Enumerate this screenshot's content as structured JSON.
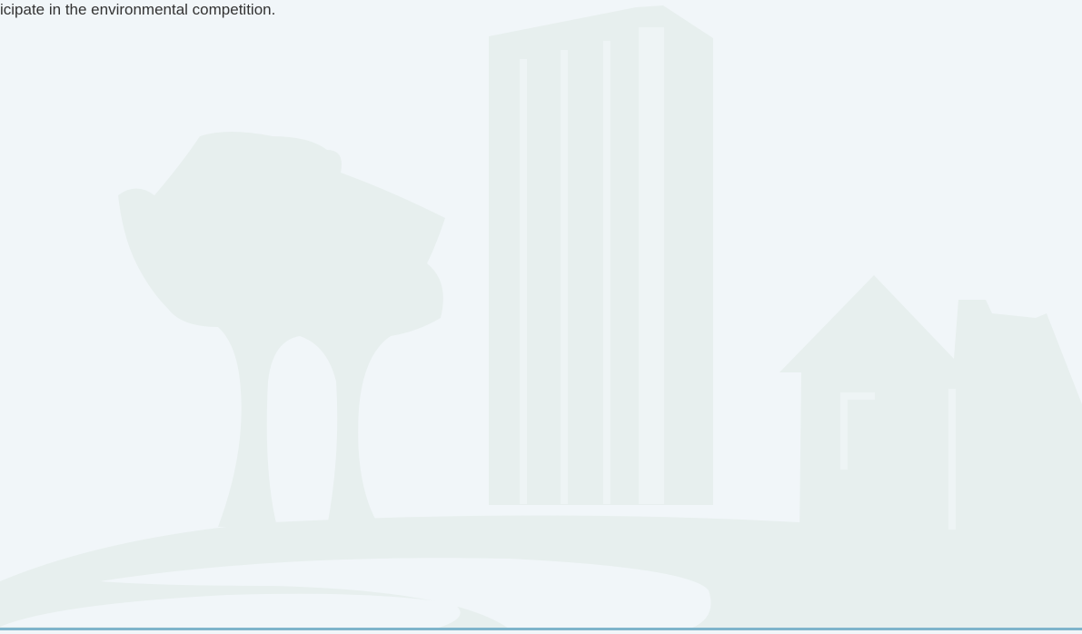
{
  "text": "icipate in the environmental competition."
}
